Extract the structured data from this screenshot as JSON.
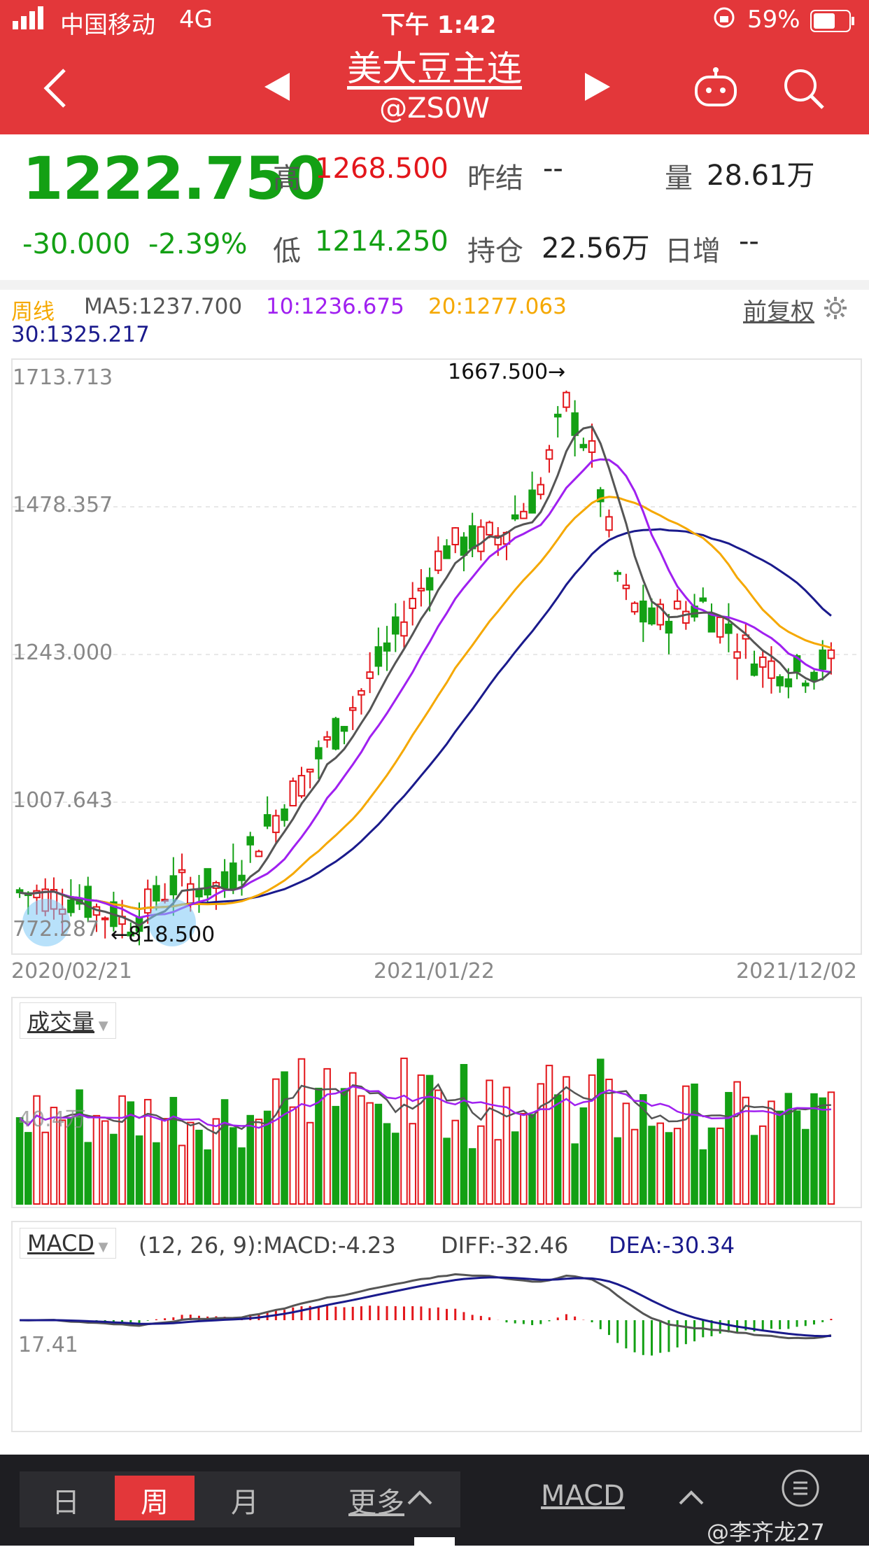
{
  "status_bar": {
    "carrier": "中国移动",
    "network": "4G",
    "time": "下午 1:42",
    "battery": "59%"
  },
  "header": {
    "title": "美大豆主连",
    "code": "@ZS0W"
  },
  "quote": {
    "price": "1222.750",
    "change": "-30.000",
    "change_pct": "-2.39%",
    "high_label": "高",
    "high": "1268.500",
    "low_label": "低",
    "low": "1214.250",
    "prev_close_label": "昨结",
    "prev_close": "--",
    "open_interest_label": "持仓",
    "open_interest": "22.56万",
    "volume_label": "量",
    "volume": "28.61万",
    "daily_inc_label": "日增",
    "daily_inc": "--"
  },
  "ma_legend": {
    "period": "周线",
    "ma5": "MA5:1237.700",
    "ma10": "10:1236.675",
    "ma20": "20:1277.063",
    "ma30": "30:1325.217",
    "adjust": "前复权"
  },
  "main_chart": {
    "y_labels": [
      "1713.713",
      "1478.357",
      "1243.000",
      "1007.643",
      "772.287"
    ],
    "max_label": "1667.500→",
    "min_label": "←818.500",
    "dates": [
      "2020/02/21",
      "2021/01/22",
      "2021/12/02"
    ]
  },
  "volume_panel": {
    "title": "成交量",
    "y_label": "40.4万"
  },
  "macd_panel": {
    "title": "MACD",
    "params": "(12, 26, 9):MACD:-4.23",
    "diff": "DIFF:-32.46",
    "dea": "DEA:-30.34",
    "y_label": "17.41"
  },
  "tab_bar": {
    "day": "日",
    "week": "周",
    "month": "月",
    "more": "更多",
    "indicator": "MACD",
    "watermark": "@李齐龙27"
  },
  "colors": {
    "header_bg": "#e3373a",
    "up": "#e3161b",
    "down": "#13a014",
    "ma5": "#555555",
    "ma10": "#a020f0",
    "ma20": "#f5a800",
    "ma30": "#1a1a8c"
  }
}
